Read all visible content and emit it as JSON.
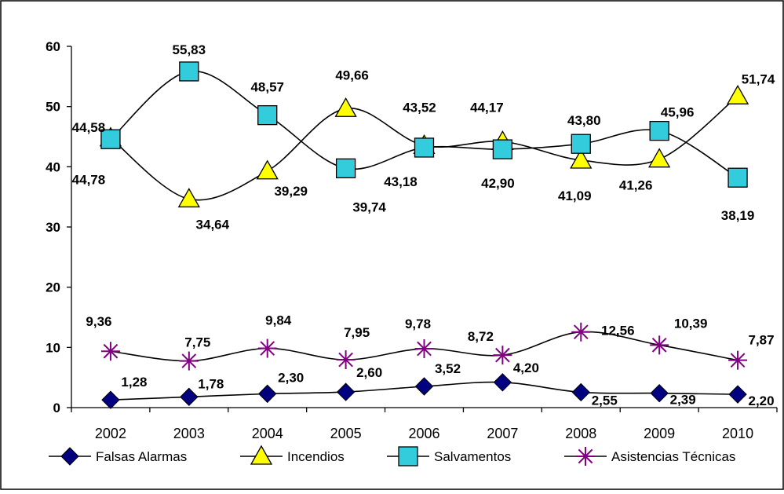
{
  "chart_data": {
    "type": "line",
    "categories": [
      "2002",
      "2003",
      "2004",
      "2005",
      "2006",
      "2007",
      "2008",
      "2009",
      "2010"
    ],
    "ylim": [
      0,
      60
    ],
    "yticks": [
      "0",
      "10",
      "20",
      "30",
      "40",
      "50",
      "60"
    ],
    "grid": false,
    "legend": "bottom",
    "series": [
      {
        "name": "Falsas Alarmas",
        "marker": "diamond",
        "color": "#000080",
        "values": [
          1.28,
          1.78,
          2.3,
          2.6,
          3.52,
          4.2,
          2.55,
          2.39,
          2.2
        ],
        "labels": [
          "1,28",
          "1,78",
          "2,30",
          "2,60",
          "3,52",
          "4,20",
          "2,55",
          "2,39",
          "2,20"
        ]
      },
      {
        "name": "Incendios",
        "marker": "triangle",
        "color": "#ffff00",
        "values": [
          44.78,
          34.64,
          39.29,
          49.66,
          43.52,
          44.17,
          41.09,
          41.26,
          51.74
        ],
        "labels": [
          "44,78",
          "34,64",
          "39,29",
          "49,66",
          "43,52",
          "44,17",
          "41,09",
          "41,26",
          "51,74"
        ]
      },
      {
        "name": "Salvamentos",
        "marker": "square",
        "color": "#33ccdd",
        "values": [
          44.58,
          55.83,
          48.57,
          39.74,
          43.18,
          42.9,
          43.8,
          45.96,
          38.19
        ],
        "labels": [
          "44,58",
          "55,83",
          "48,57",
          "39,74",
          "43,18",
          "42,90",
          "43,80",
          "45,96",
          "38,19"
        ]
      },
      {
        "name": "Asistencias Técnicas",
        "marker": "star",
        "color": "#800080",
        "values": [
          9.36,
          7.75,
          9.84,
          7.95,
          9.78,
          8.72,
          12.56,
          10.39,
          7.87
        ],
        "labels": [
          "9,36",
          "7,75",
          "9,84",
          "7,95",
          "9,78",
          "8,72",
          "12,56",
          "10,39",
          "7,87"
        ]
      }
    ]
  }
}
